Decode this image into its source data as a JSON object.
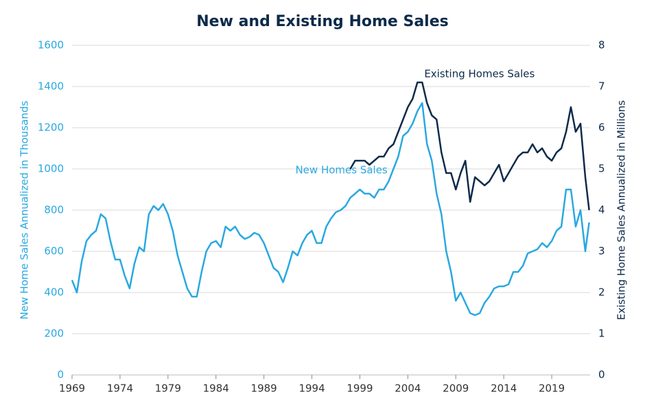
{
  "chart_data": {
    "type": "line",
    "title": "New and Existing Home Sales",
    "ylabel": "New Home Sales Annualized in Thousands",
    "y2label": "Existing Home Sales Annualized in Millions",
    "x": [
      1969.0,
      1969.5,
      1970.0,
      1970.5,
      1971.0,
      1971.5,
      1972.0,
      1972.5,
      1973.0,
      1973.5,
      1974.0,
      1974.5,
      1975.0,
      1975.5,
      1976.0,
      1976.5,
      1977.0,
      1977.5,
      1978.0,
      1978.5,
      1979.0,
      1979.5,
      1980.0,
      1980.5,
      1981.0,
      1981.5,
      1982.0,
      1982.5,
      1983.0,
      1983.5,
      1984.0,
      1984.5,
      1985.0,
      1985.5,
      1986.0,
      1986.5,
      1987.0,
      1987.5,
      1988.0,
      1988.5,
      1989.0,
      1989.5,
      1990.0,
      1990.5,
      1991.0,
      1991.5,
      1992.0,
      1992.5,
      1993.0,
      1993.5,
      1994.0,
      1994.5,
      1995.0,
      1995.5,
      1996.0,
      1996.5,
      1997.0,
      1997.5,
      1998.0,
      1998.5,
      1999.0,
      1999.5,
      2000.0,
      2000.5,
      2001.0,
      2001.5,
      2002.0,
      2002.5,
      2003.0,
      2003.5,
      2004.0,
      2004.5,
      2005.0,
      2005.5,
      2006.0,
      2006.5,
      2007.0,
      2007.5,
      2008.0,
      2008.5,
      2009.0,
      2009.5,
      2010.0,
      2010.5,
      2011.0,
      2011.5,
      2012.0,
      2012.5,
      2013.0,
      2013.5,
      2014.0,
      2014.5,
      2015.0,
      2015.5,
      2016.0,
      2016.5,
      2017.0,
      2017.5,
      2018.0,
      2018.5,
      2019.0,
      2019.5,
      2020.0,
      2020.5,
      2021.0,
      2021.5,
      2022.0,
      2022.5,
      2022.9
    ],
    "series": [
      {
        "name": "New Homes Sales",
        "color": "#29a8e0",
        "axis": "y",
        "values": [
          460,
          400,
          550,
          650,
          680,
          700,
          780,
          760,
          650,
          560,
          560,
          480,
          420,
          540,
          620,
          600,
          780,
          820,
          800,
          830,
          780,
          700,
          580,
          500,
          420,
          380,
          380,
          500,
          600,
          640,
          650,
          620,
          720,
          700,
          720,
          680,
          660,
          670,
          690,
          680,
          640,
          580,
          520,
          500,
          450,
          520,
          600,
          580,
          640,
          680,
          700,
          640,
          640,
          720,
          760,
          790,
          800,
          820,
          860,
          880,
          900,
          880,
          880,
          860,
          900,
          900,
          940,
          1000,
          1060,
          1160,
          1180,
          1220,
          1280,
          1320,
          1120,
          1040,
          880,
          780,
          600,
          500,
          360,
          400,
          350,
          300,
          290,
          300,
          350,
          380,
          420,
          430,
          430,
          440,
          500,
          500,
          530,
          590,
          600,
          610,
          640,
          620,
          650,
          700,
          720,
          900,
          900,
          720,
          800,
          600,
          740
        ]
      },
      {
        "name": "Existing Homes Sales",
        "color": "#0d2a4a",
        "axis": "y2",
        "values": [
          null,
          null,
          null,
          null,
          null,
          null,
          null,
          null,
          null,
          null,
          null,
          null,
          null,
          null,
          null,
          null,
          null,
          null,
          null,
          null,
          null,
          null,
          null,
          null,
          null,
          null,
          null,
          null,
          null,
          null,
          null,
          null,
          null,
          null,
          null,
          null,
          null,
          null,
          null,
          null,
          null,
          null,
          null,
          null,
          null,
          null,
          null,
          null,
          null,
          null,
          null,
          null,
          null,
          null,
          null,
          null,
          null,
          null,
          5.0,
          5.2,
          5.2,
          5.2,
          5.1,
          5.2,
          5.3,
          5.3,
          5.5,
          5.6,
          5.9,
          6.2,
          6.5,
          6.7,
          7.1,
          7.1,
          6.6,
          6.3,
          6.2,
          5.4,
          4.9,
          4.9,
          4.5,
          4.9,
          5.2,
          4.2,
          4.8,
          4.7,
          4.6,
          4.7,
          4.9,
          5.1,
          4.7,
          4.9,
          5.1,
          5.3,
          5.4,
          5.4,
          5.6,
          5.4,
          5.5,
          5.3,
          5.2,
          5.4,
          5.5,
          5.9,
          6.5,
          5.9,
          6.1,
          4.8,
          4.0
        ]
      }
    ],
    "xlim": [
      1969,
      2023
    ],
    "xticks": [
      1969,
      1974,
      1979,
      1984,
      1989,
      1994,
      1999,
      2004,
      2009,
      2014,
      2019
    ],
    "ylim": [
      0,
      1600
    ],
    "yticks": [
      0,
      200,
      400,
      600,
      800,
      1000,
      1200,
      1400,
      1600
    ],
    "y2lim": [
      0,
      8
    ],
    "y2ticks": [
      0,
      1,
      2,
      3,
      4,
      5,
      6,
      7,
      8
    ],
    "grid": true
  }
}
